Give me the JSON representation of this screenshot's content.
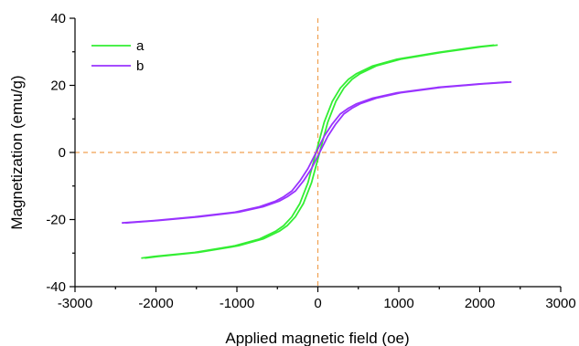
{
  "chart_data": {
    "type": "line",
    "title": "",
    "xlabel": "Applied magnetic field (oe)",
    "ylabel": "Magnetization (emu/g)",
    "xlim": [
      -3000,
      3000
    ],
    "ylim": [
      -40,
      40
    ],
    "x_ticks": [
      -3000,
      -2000,
      -1000,
      0,
      1000,
      2000,
      3000
    ],
    "y_ticks": [
      -40,
      -20,
      0,
      20,
      40
    ],
    "grid": false,
    "legend_position": "top-left",
    "reference_lines": {
      "x": 0,
      "y": 0,
      "color": "#f0a050",
      "style": "dashed"
    },
    "series": [
      {
        "name": "a",
        "color": "#33ee33",
        "points": [
          [
            -2160,
            -31.5
          ],
          [
            -2000,
            -31.0
          ],
          [
            -1500,
            -29.8
          ],
          [
            -1000,
            -27.8
          ],
          [
            -700,
            -25.8
          ],
          [
            -500,
            -23.5
          ],
          [
            -400,
            -21.8
          ],
          [
            -300,
            -19.2
          ],
          [
            -200,
            -15.2
          ],
          [
            -100,
            -9.0
          ],
          [
            0,
            0.0
          ],
          [
            100,
            9.0
          ],
          [
            200,
            15.2
          ],
          [
            300,
            19.2
          ],
          [
            400,
            21.8
          ],
          [
            500,
            23.5
          ],
          [
            700,
            25.8
          ],
          [
            1000,
            27.8
          ],
          [
            1500,
            29.8
          ],
          [
            2000,
            31.5
          ],
          [
            2200,
            32.0
          ]
        ]
      },
      {
        "name": "b",
        "color": "#9933ff",
        "points": [
          [
            -2400,
            -21.0
          ],
          [
            -2000,
            -20.3
          ],
          [
            -1500,
            -19.2
          ],
          [
            -1000,
            -17.8
          ],
          [
            -700,
            -16.2
          ],
          [
            -500,
            -14.5
          ],
          [
            -400,
            -13.2
          ],
          [
            -300,
            -11.5
          ],
          [
            -200,
            -8.5
          ],
          [
            -100,
            -4.8
          ],
          [
            0,
            0.0
          ],
          [
            100,
            4.8
          ],
          [
            200,
            8.5
          ],
          [
            300,
            11.5
          ],
          [
            400,
            13.2
          ],
          [
            500,
            14.5
          ],
          [
            700,
            16.2
          ],
          [
            1000,
            17.8
          ],
          [
            1500,
            19.4
          ],
          [
            2000,
            20.4
          ],
          [
            2370,
            21.0
          ]
        ]
      }
    ]
  }
}
